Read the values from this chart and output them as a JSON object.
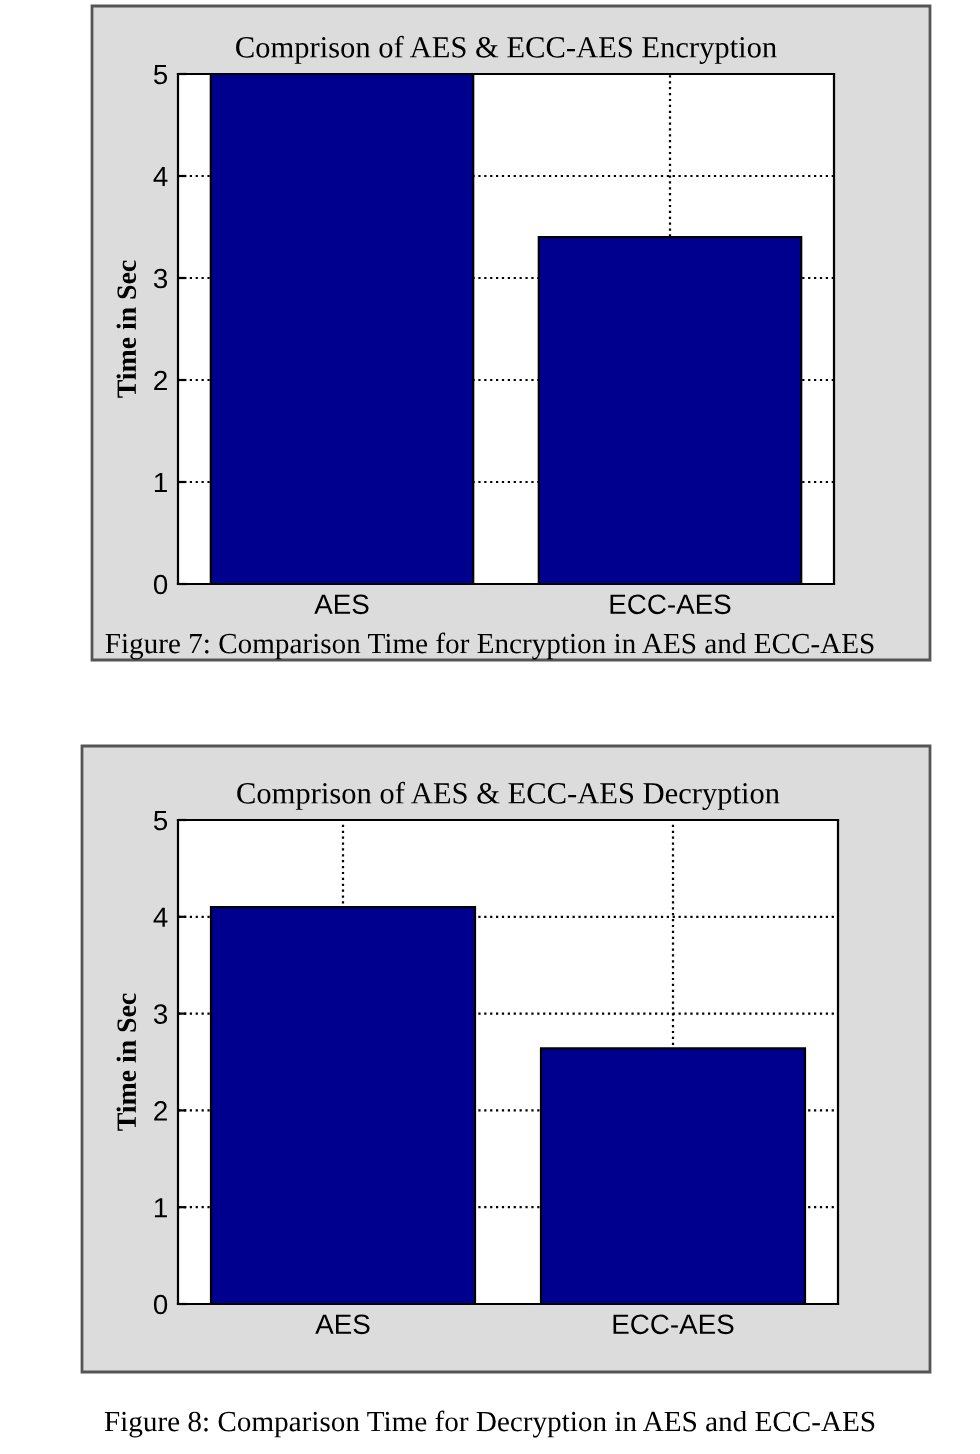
{
  "chart_data": [
    {
      "type": "bar",
      "title": "Comprison of AES & ECC-AES Encryption",
      "ylabel": "Time in Sec",
      "categories": [
        "AES",
        "ECC-AES"
      ],
      "values": [
        5,
        3.4
      ],
      "color": "#00008f",
      "ylim": [
        0,
        5
      ],
      "yticks": [
        0,
        1,
        2,
        3,
        4,
        5
      ],
      "grid": true,
      "line_style": "dotted",
      "annotations": [
        "Figure 7: Comparison Time for Encryption in AES and ECC-AES"
      ]
    },
    {
      "type": "bar",
      "title": "Comprison of AES & ECC-AES Decryption",
      "ylabel": "Time in Sec",
      "categories": [
        "AES",
        "ECC-AES"
      ],
      "values": [
        4.1,
        2.64
      ],
      "color": "#00008f",
      "ylim": [
        0,
        5
      ],
      "yticks": [
        0,
        1,
        2,
        3,
        4,
        5
      ],
      "grid": true,
      "line_style": "dotted",
      "annotations": [
        "Figure 8: Comparison Time for Decryption in AES and ECC-AES"
      ]
    }
  ]
}
